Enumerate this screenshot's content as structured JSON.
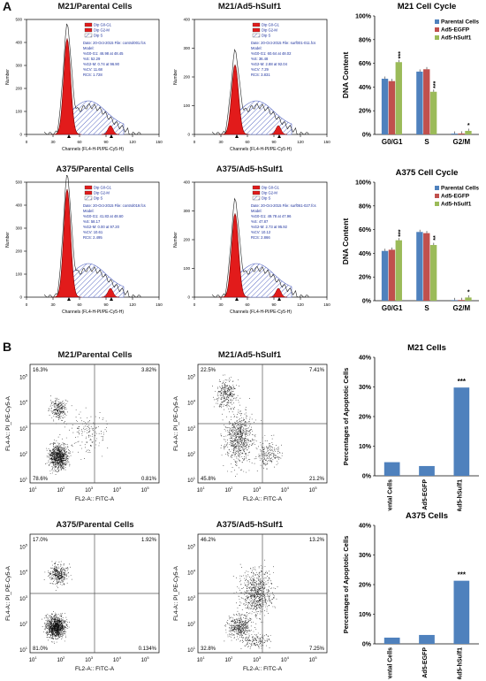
{
  "panels": {
    "a": "A",
    "b": "B"
  },
  "histograms": [
    {
      "title": "M21/Parental Cells",
      "legend": [
        "Dip G0-G1",
        "Dip G2-M",
        "Dip S"
      ],
      "stats": [
        "Date: 20-Oct-2015 File: control001.fcs",
        "Model:",
        "%G0-G1: 46.98 at 48.45",
        "%S: 52.29",
        "%G2-M: 0.74 at 96.90",
        "%CV: 11.68",
        "RCS: 1.728"
      ],
      "x_ticks": [
        "0",
        "30",
        "60",
        "90",
        "120",
        "150"
      ],
      "y_ticks": [
        "0",
        "100",
        "200",
        "300",
        "400",
        "500"
      ],
      "xlabel": "Channels (FL4-H-PI/PE-Cy5-H)",
      "ylabel": "Number"
    },
    {
      "title": "M21/Ad5-hSulf1",
      "legend": [
        "Dip G0-G1",
        "Dip G2-M",
        "Dip S"
      ],
      "stats": [
        "Date: 20-Oct-2015 File: surf001-011.fcs",
        "Model:",
        "%G0-G1: 60.64 at 48.02",
        "%S: 36.48",
        "%G2-M: 2.88 at 92.04",
        "%CV: 7.29",
        "RCS: 3.831"
      ],
      "x_ticks": [
        "0",
        "30",
        "60",
        "90",
        "120",
        "150"
      ],
      "y_ticks": [
        "0",
        "100",
        "200",
        "300",
        "400"
      ],
      "xlabel": "Channels (FL4-H-PI/PE-Cy5-H)",
      "ylabel": "Number"
    },
    {
      "title": "A375/Parental Cells",
      "legend": [
        "Dip G0-G1",
        "Dip G2-M",
        "Dip S"
      ],
      "stats": [
        "Date: 20-Oct-2015 File: control019.fcs",
        "Model:",
        "%G0-G1: 41.83 at 48.60",
        "%S: 58.17",
        "%G2-M: 0.00 at 97.20",
        "%CV: 10.61",
        "RCS: 2.495"
      ],
      "x_ticks": [
        "0",
        "30",
        "60",
        "90",
        "120",
        "150"
      ],
      "y_ticks": [
        "0",
        "100",
        "200",
        "300",
        "400",
        "500"
      ],
      "xlabel": "Channels (FL4-H-PI/PE-Cy5-H)",
      "ylabel": "Number"
    },
    {
      "title": "A375/Ad5-hSulf1",
      "legend": [
        "Dip G0-G1",
        "Dip G2-M",
        "Dip S"
      ],
      "stats": [
        "Date: 20-Oct-2015 File: surf061-027.fcs",
        "Model:",
        "%G0-G1: 49.78 at 47.96",
        "%S: 47.87",
        "%G2-M: 2.73 at 95.92",
        "%CV: 10.12",
        "RCS: 2.866"
      ],
      "x_ticks": [
        "0",
        "30",
        "60",
        "90",
        "120",
        "150"
      ],
      "y_ticks": [
        "0",
        "100",
        "200",
        "300",
        "400"
      ],
      "xlabel": "Channels (FL4-H-PI/PE-Cy5-H)",
      "ylabel": "Number"
    }
  ],
  "flows": [
    {
      "title": "M21/Parental Cells",
      "q": [
        "16.3%",
        "3.82%",
        "78.6%",
        "0.81%"
      ]
    },
    {
      "title": "M21/Ad5-hSulf1",
      "q": [
        "22.5%",
        "7.41%",
        "45.8%",
        "21.2%"
      ]
    },
    {
      "title": "A375/Parental Cells",
      "q": [
        "17.0%",
        "1.92%",
        "81.0%",
        "0.134%"
      ]
    },
    {
      "title": "A375/Ad5-hSulf1",
      "q": [
        "46.2%",
        "13.2%",
        "32.8%",
        "7.25%"
      ]
    }
  ],
  "flow_axes": {
    "xlabel": "FL2-A:: FITC-A",
    "ylabel": "FL4-A:: PI_PE-Cy5-A",
    "ticks": [
      "10^1",
      "10^2",
      "10^3",
      "10^4",
      "10^5"
    ]
  },
  "chart_data": [
    {
      "type": "bar",
      "title": "M21 Cell Cycle",
      "ylabel": "DNA Content",
      "categories": [
        "G0/G1",
        "S",
        "G2/M"
      ],
      "series": [
        {
          "name": "Parental Cells",
          "values": [
            47,
            53,
            0.7
          ]
        },
        {
          "name": "Ad5-EGFP",
          "values": [
            45,
            55,
            0.8
          ]
        },
        {
          "name": "Ad5-hSulf1",
          "values": [
            61,
            36,
            3
          ]
        }
      ],
      "yticks": [
        "0%",
        "20%",
        "40%",
        "60%",
        "80%",
        "100%"
      ],
      "ylim": [
        0,
        100
      ],
      "annotations": [
        "***",
        "***",
        "*"
      ],
      "colors": [
        "#4f81bd",
        "#c0504d",
        "#9bbb59"
      ],
      "legend": "top-right"
    },
    {
      "type": "bar",
      "title": "A375 Cell Cycle",
      "ylabel": "DNA Content",
      "categories": [
        "G0/G1",
        "S",
        "G2/M"
      ],
      "series": [
        {
          "name": "Parental Cells",
          "values": [
            42,
            58,
            0.5
          ]
        },
        {
          "name": "Ad5-EGFP",
          "values": [
            43,
            57,
            0.6
          ]
        },
        {
          "name": "Ad5-hSulf1",
          "values": [
            51,
            47,
            2.7
          ]
        }
      ],
      "yticks": [
        "0%",
        "20%",
        "40%",
        "60%",
        "80%",
        "100%"
      ],
      "ylim": [
        0,
        100
      ],
      "annotations": [
        "***",
        "**",
        "*"
      ],
      "colors": [
        "#4f81bd",
        "#c0504d",
        "#9bbb59"
      ],
      "legend": "top-right"
    },
    {
      "type": "bar",
      "title": "M21 Cells",
      "ylabel": "Percentages of Apoptotic Cells",
      "categories": [
        "Parental Cells",
        "Ad5-EGFP",
        "Ad5-hSulf1"
      ],
      "series": [
        {
          "values": [
            4.6,
            3.3,
            29.8
          ]
        }
      ],
      "yticks": [
        "0%",
        "10%",
        "20%",
        "30%",
        "40%"
      ],
      "ylim": [
        0,
        40
      ],
      "annotations": [
        "***"
      ],
      "colors": [
        "#4f81bd"
      ]
    },
    {
      "type": "bar",
      "title": "A375 Cells",
      "ylabel": "Percentages of Apoptotic Cells",
      "categories": [
        "Parental Cells",
        "Ad5-EGFP",
        "Ad5-hSulf1"
      ],
      "series": [
        {
          "values": [
            2.1,
            3.0,
            21.3
          ]
        }
      ],
      "yticks": [
        "0%",
        "10%",
        "20%",
        "30%",
        "40%"
      ],
      "ylim": [
        0,
        40
      ],
      "annotations": [
        "***"
      ],
      "colors": [
        "#4f81bd"
      ]
    }
  ]
}
